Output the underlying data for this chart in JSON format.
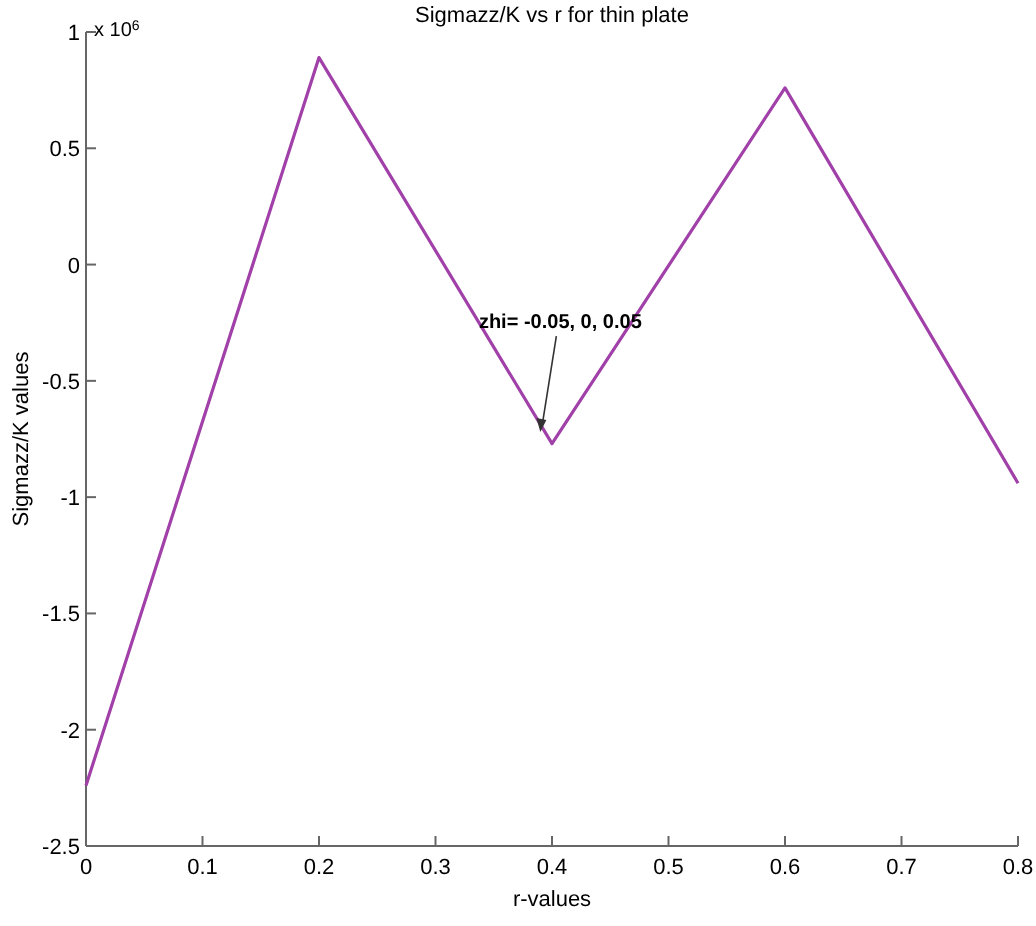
{
  "chart_data": {
    "type": "line",
    "title": "Sigmazz/K vs r for thin plate",
    "xlabel": "r-values",
    "ylabel": "Sigmazz/K  values",
    "x": [
      0,
      0.2,
      0.4,
      0.6,
      0.8
    ],
    "series": [
      {
        "color": "#a040a8",
        "values": [
          -2.24,
          0.89,
          -0.77,
          0.76,
          -0.94
        ]
      }
    ],
    "xlim": [
      0,
      0.8
    ],
    "xticks": [
      0,
      0.1,
      0.2,
      0.3,
      0.4,
      0.5,
      0.6,
      0.7,
      0.8
    ],
    "ylim": [
      -2.5,
      1
    ],
    "yticks": [
      -2.5,
      -2,
      -1.5,
      -1,
      -0.5,
      0,
      0.5,
      1
    ],
    "annotations": [
      "x 10$^{6}$",
      {
        "text": "zhi= -0.05, 0, 0.05",
        "x": 0.39,
        "y": -0.72
      }
    ],
    "grid": false,
    "marker": "none",
    "line_style": "solid"
  }
}
